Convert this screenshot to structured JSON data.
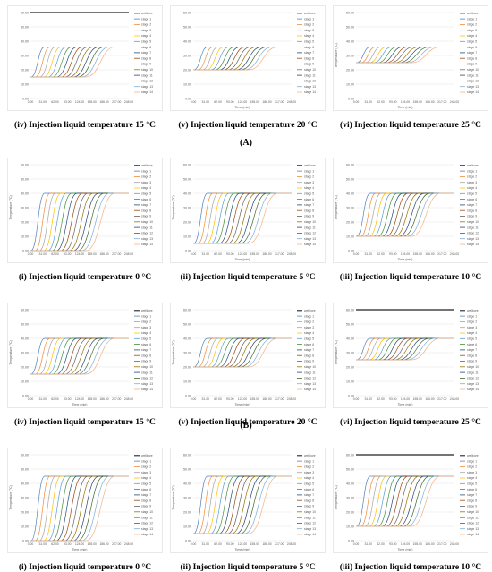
{
  "series_names": [
    "wellbore",
    "stage 1",
    "stage 2",
    "stage 3",
    "stage 4",
    "stage 5",
    "stage 6",
    "stage 7",
    "stage 8",
    "stage 9",
    "stage 10",
    "stage 11",
    "stage 12",
    "stage 13",
    "stage 14"
  ],
  "series_colors": [
    "#222222",
    "#4f81bd",
    "#f08c3a",
    "#a5a5a5",
    "#ffc000",
    "#5b9bd5",
    "#4b8a3c",
    "#1f4e79",
    "#9e480e",
    "#636363",
    "#997300",
    "#264478",
    "#43682b",
    "#7cafdd",
    "#f4b183"
  ],
  "axis_text": {
    "temperature": "Temperature (°C)",
    "time": "Time (min)"
  },
  "group_labels": [
    "(A)",
    "(B)"
  ],
  "chart_data": [
    {
      "type": "line",
      "caption": "(iv) Injection liquid temperature 15 °C",
      "ylim": [
        0,
        60
      ],
      "yticks": [
        "0.00",
        "10.00",
        "20.00",
        "30.00",
        "40.00",
        "50.00",
        "60.00"
      ],
      "xticks": [
        "0.00",
        "31.00",
        "62.00",
        "93.00",
        "124.00",
        "155.00",
        "186.00",
        "217.00",
        "248.00"
      ],
      "wellbore": 60,
      "start": 15,
      "end": 36,
      "ylabel": "",
      "xlabel": ""
    },
    {
      "type": "line",
      "caption": "(v) Injection liquid temperature 20 °C",
      "ylim": [
        0,
        60
      ],
      "yticks": [
        "0.00",
        "10.00",
        "20.00",
        "30.00",
        "40.00",
        "50.00",
        "60.00"
      ],
      "xticks": [
        "0.00",
        "31.00",
        "62.00",
        "93.00",
        "124.00",
        "155.00",
        "186.00",
        "217.00",
        "248.00"
      ],
      "wellbore": null,
      "start": 20,
      "end": 36,
      "ylabel": "",
      "xlabel": "Time (min)"
    },
    {
      "type": "line",
      "caption": "(vi) Injection liquid temperature 25 °C",
      "ylim": [
        0,
        60
      ],
      "yticks": [
        "0.00",
        "10.00",
        "20.00",
        "30.00",
        "40.00",
        "50.00",
        "60.00"
      ],
      "xticks": [
        "0.00",
        "31.00",
        "62.00",
        "93.00",
        "124.00",
        "155.00",
        "186.00",
        "217.00",
        "248.00"
      ],
      "wellbore": null,
      "start": 25,
      "end": 36,
      "ylabel": "Temperature (°C)",
      "xlabel": "Time (min)"
    },
    {
      "type": "line",
      "caption": "(i) Injection liquid temperature 0 °C",
      "ylim": [
        0,
        60
      ],
      "yticks": [
        "0.00",
        "10.00",
        "20.00",
        "30.00",
        "40.00",
        "50.00",
        "60.00"
      ],
      "xticks": [
        "0.00",
        "31.00",
        "62.00",
        "93.00",
        "124.00",
        "155.00",
        "186.00",
        "217.00",
        "248.00"
      ],
      "wellbore": null,
      "start": 0,
      "end": 40,
      "ylabel": "Temperature (°C)",
      "xlabel": ""
    },
    {
      "type": "line",
      "caption": "(ii) Injection liquid temperature 5 °C",
      "ylim": [
        0,
        60
      ],
      "yticks": [
        "0.00",
        "10.00",
        "20.00",
        "30.00",
        "40.00",
        "50.00",
        "60.00"
      ],
      "xticks": [
        "0.00",
        "31.00",
        "62.00",
        "93.00",
        "124.00",
        "155.00",
        "186.00",
        "217.00",
        "248.00"
      ],
      "wellbore": null,
      "start": 5,
      "end": 40,
      "ylabel": "Temperature (°C)",
      "xlabel": "Time (min)"
    },
    {
      "type": "line",
      "caption": "(iii) Injection liquid temperature 10 °C",
      "ylim": [
        0,
        60
      ],
      "yticks": [
        "0.00",
        "10.00",
        "20.00",
        "30.00",
        "40.00",
        "50.00",
        "60.00"
      ],
      "xticks": [
        "0.00",
        "31.00",
        "62.00",
        "93.00",
        "124.00",
        "155.00",
        "186.00",
        "217.00",
        "248.00"
      ],
      "wellbore": null,
      "start": 10,
      "end": 40,
      "ylabel": "Temperature (°C)",
      "xlabel": "Time (min)"
    },
    {
      "type": "line",
      "caption": "(iv) Injection liquid temperature 15 °C",
      "ylim": [
        0,
        60
      ],
      "yticks": [
        "0.00",
        "10.00",
        "20.00",
        "30.00",
        "40.00",
        "50.00",
        "60.00"
      ],
      "xticks": [
        "0.00",
        "31.00",
        "62.00",
        "93.00",
        "124.00",
        "155.00",
        "186.00",
        "217.00",
        "248.00"
      ],
      "wellbore": null,
      "start": 15,
      "end": 40,
      "ylabel": "Temperature (°C)",
      "xlabel": "Time (min)"
    },
    {
      "type": "line",
      "caption": "(v) Injection liquid temperature 20 °C",
      "ylim": [
        0,
        60
      ],
      "yticks": [
        "0.00",
        "10.00",
        "20.00",
        "30.00",
        "40.00",
        "50.00",
        "60.00"
      ],
      "xticks": [
        "0.00",
        "31.00",
        "62.00",
        "93.00",
        "124.00",
        "155.00",
        "186.00",
        "217.00",
        "248.00"
      ],
      "wellbore": null,
      "start": 20,
      "end": 40,
      "ylabel": "Temperature (°C)",
      "xlabel": "Time (min)"
    },
    {
      "type": "line",
      "caption": "(vi) Injection liquid temperature 25 °C",
      "ylim": [
        0,
        60
      ],
      "yticks": [
        "0.00",
        "10.00",
        "20.00",
        "30.00",
        "40.00",
        "50.00",
        "60.00"
      ],
      "xticks": [
        "0.00",
        "31.00",
        "62.00",
        "93.00",
        "124.00",
        "155.00",
        "186.00",
        "217.00",
        "248.00"
      ],
      "wellbore": 60,
      "start": 25,
      "end": 40,
      "ylabel": "Temperature (°C)",
      "xlabel": "Time (min)"
    },
    {
      "type": "line",
      "caption": "(i) Injection liquid temperature 0 °C",
      "ylim": [
        0,
        60
      ],
      "yticks": [
        "0.00",
        "10.00",
        "20.00",
        "30.00",
        "40.00",
        "50.00",
        "60.00"
      ],
      "xticks": [
        "0.00",
        "31.00",
        "62.00",
        "93.00",
        "124.00",
        "155.00",
        "186.00",
        "217.00",
        "248.00"
      ],
      "wellbore": null,
      "start": 0,
      "end": 45,
      "ylabel": "Temperature (°C)",
      "xlabel": "Time (min)"
    },
    {
      "type": "line",
      "caption": "(ii) Injection liquid temperature 5 °C",
      "ylim": [
        0,
        60
      ],
      "yticks": [
        "0.00",
        "10.00",
        "20.00",
        "30.00",
        "40.00",
        "50.00",
        "60.00"
      ],
      "xticks": [
        "0.00",
        "31.00",
        "62.00",
        "93.00",
        "124.00",
        "155.00",
        "186.00",
        "217.00",
        "248.00"
      ],
      "wellbore": null,
      "start": 5,
      "end": 45,
      "ylabel": "Temperature (°C)",
      "xlabel": "Time (min)"
    },
    {
      "type": "line",
      "caption": "(iii) Injection liquid temperature 10 °C",
      "ylim": [
        0,
        60
      ],
      "yticks": [
        "0.00",
        "10.00",
        "20.00",
        "30.00",
        "40.00",
        "50.00",
        "60.00"
      ],
      "xticks": [
        "0.00",
        "31.00",
        "62.00",
        "93.00",
        "124.00",
        "155.00",
        "186.00",
        "217.00",
        "248.00"
      ],
      "wellbore": 60,
      "start": 10,
      "end": 45,
      "ylabel": "Temperature (°C)",
      "xlabel": "Time (min)"
    }
  ]
}
